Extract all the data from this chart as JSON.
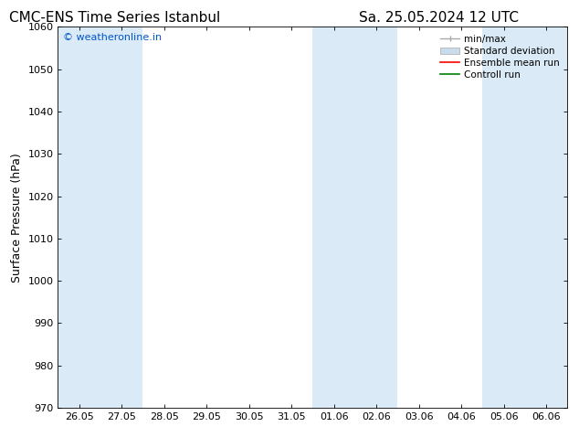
{
  "title_left": "CMC-ENS Time Series Istanbul",
  "title_right": "Sa. 25.05.2024 12 UTC",
  "ylabel": "Surface Pressure (hPa)",
  "ylim": [
    970,
    1060
  ],
  "yticks": [
    970,
    980,
    990,
    1000,
    1010,
    1020,
    1030,
    1040,
    1050,
    1060
  ],
  "xtick_labels": [
    "26.05",
    "27.05",
    "28.05",
    "29.05",
    "30.05",
    "31.05",
    "01.06",
    "02.06",
    "03.06",
    "04.06",
    "05.06",
    "06.06"
  ],
  "watermark": "© weatheronline.in",
  "watermark_color": "#0055cc",
  "background_color": "#ffffff",
  "plot_bg_color": "#ffffff",
  "shade_color": "#daeaf6",
  "shade_columns": [
    0,
    1,
    6,
    7,
    10,
    11
  ],
  "legend_items": [
    {
      "label": "min/max",
      "color": "#aaaaaa",
      "lw": 1.0
    },
    {
      "label": "Standard deviation",
      "color": "#c8dcea",
      "lw": 6
    },
    {
      "label": "Ensemble mean run",
      "color": "#ff0000",
      "lw": 1.2
    },
    {
      "label": "Controll run",
      "color": "#008000",
      "lw": 1.2
    }
  ],
  "title_fontsize": 11,
  "tick_label_fontsize": 8,
  "ylabel_fontsize": 9,
  "watermark_fontsize": 8,
  "legend_fontsize": 7.5
}
